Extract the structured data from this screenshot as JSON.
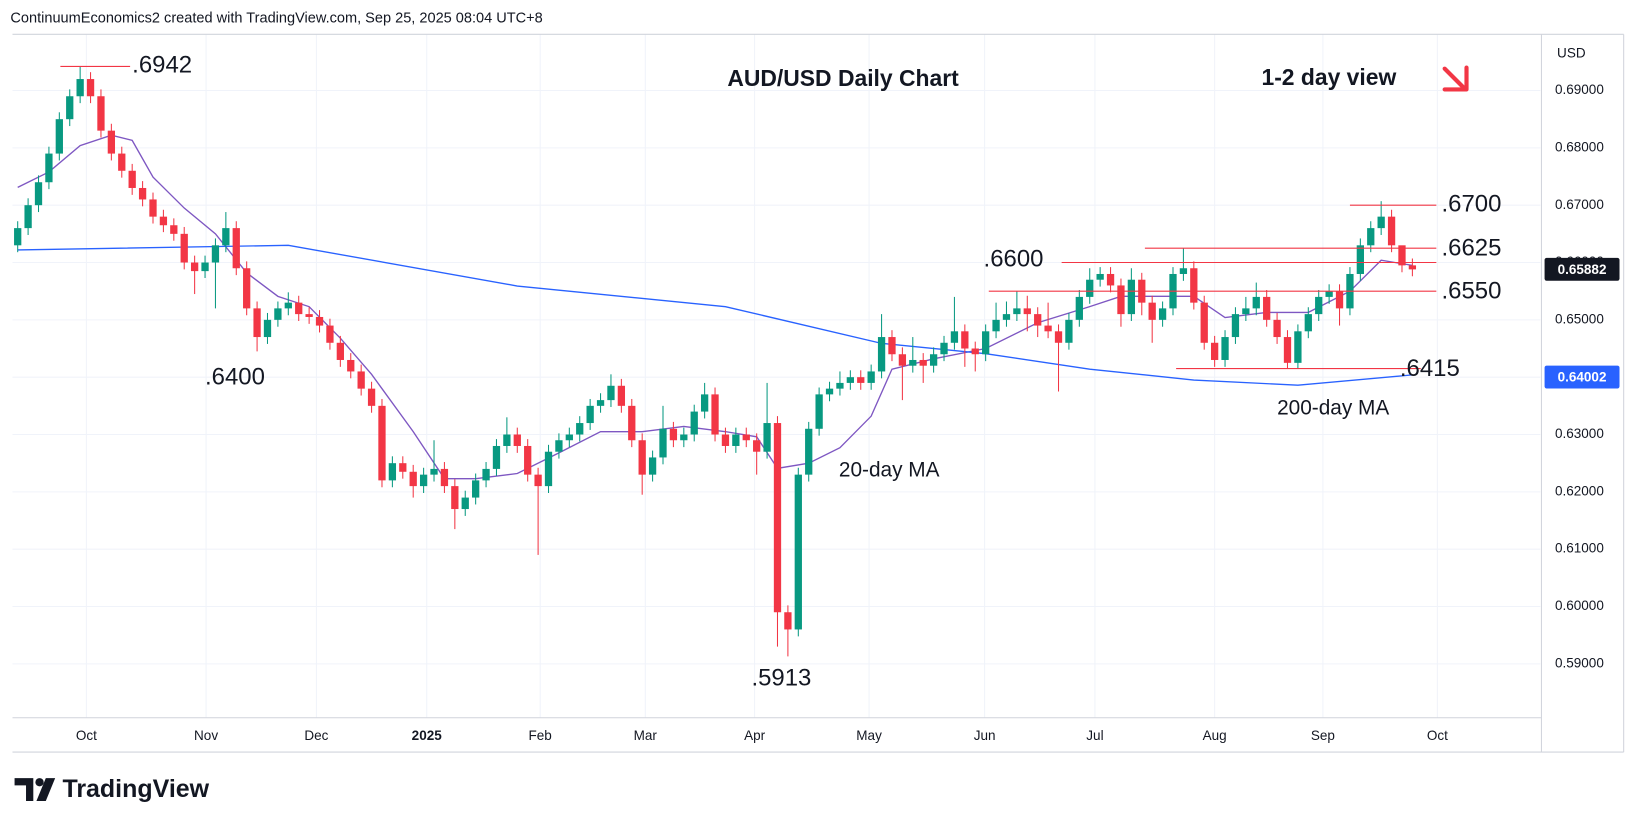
{
  "header": "ContinuumEconomics2 created with TradingView.com, Sep 25, 2025 08:04 UTC+8",
  "footer": {
    "brand": "TradingView"
  },
  "chart_data": {
    "type": "candlestick",
    "title": "AUD/USD Daily Chart",
    "subtitle": "1-2 day view",
    "currency": "USD",
    "up_color": "#089981",
    "down_color": "#f23645",
    "grid": true,
    "xlim": [
      -0.5,
      146.3
    ],
    "xticks": [
      {
        "value": 6.6,
        "label": "Oct"
      },
      {
        "value": 18.1,
        "label": "Nov"
      },
      {
        "value": 28.7,
        "label": "Dec"
      },
      {
        "value": 39.3,
        "label": "2025"
      },
      {
        "value": 50.2,
        "label": "Feb"
      },
      {
        "value": 60.3,
        "label": "Mar"
      },
      {
        "value": 70.8,
        "label": "Apr"
      },
      {
        "value": 81.8,
        "label": "May"
      },
      {
        "value": 92.9,
        "label": "Jun"
      },
      {
        "value": 103.5,
        "label": "Jul"
      },
      {
        "value": 115,
        "label": "Aug"
      },
      {
        "value": 125.4,
        "label": "Sep"
      },
      {
        "value": 136.4,
        "label": "Oct"
      }
    ],
    "ylim": [
      0.5806,
      0.6998
    ],
    "yticks": [
      {
        "value": 0.59,
        "label": "0.59000"
      },
      {
        "value": 0.6,
        "label": "0.60000"
      },
      {
        "value": 0.61,
        "label": "0.61000"
      },
      {
        "value": 0.62,
        "label": "0.62000"
      },
      {
        "value": 0.63,
        "label": "0.63000"
      },
      {
        "value": 0.64,
        "label": "0.64000"
      },
      {
        "value": 0.65,
        "label": "0.65000"
      },
      {
        "value": 0.66,
        "label": "0.66000"
      },
      {
        "value": 0.67,
        "label": "0.67000"
      },
      {
        "value": 0.68,
        "label": "0.68000"
      },
      {
        "value": 0.69,
        "label": "0.69000"
      }
    ],
    "categories": [
      null,
      null,
      null,
      null,
      null,
      null,
      null,
      null,
      null,
      null,
      null,
      null,
      null,
      null,
      null,
      null,
      null,
      null,
      null,
      null,
      null,
      null,
      null,
      null,
      null,
      null,
      null,
      null,
      null,
      null,
      null,
      null,
      null,
      null,
      null,
      null,
      null,
      null,
      null,
      null,
      null,
      null,
      null,
      null,
      null,
      null,
      null,
      null,
      null,
      null,
      null,
      null,
      null,
      null,
      null,
      null,
      null,
      null,
      null,
      null,
      null,
      null,
      null,
      null,
      null,
      null,
      null,
      null,
      null,
      null,
      null,
      null,
      null,
      null,
      null,
      null,
      null,
      null,
      null,
      null,
      null,
      null,
      null,
      null,
      null,
      null,
      null,
      null,
      null,
      null,
      null,
      null,
      null,
      null,
      null,
      null,
      null,
      null,
      null,
      null,
      null,
      null,
      null,
      null,
      null,
      null,
      null,
      null,
      null,
      null,
      null,
      null,
      null,
      null,
      null,
      null,
      null,
      null,
      null,
      null,
      null,
      null,
      null,
      null,
      null,
      null,
      null,
      null,
      null,
      null,
      null,
      null,
      null,
      null,
      null
    ],
    "open": [
      0.663,
      0.666,
      0.67,
      0.674,
      0.679,
      0.685,
      0.689,
      0.692,
      0.689,
      0.683,
      0.679,
      0.676,
      0.673,
      0.671,
      0.668,
      0.6665,
      0.665,
      0.66,
      0.6585,
      0.66,
      0.663,
      0.666,
      0.659,
      0.652,
      0.647,
      0.65,
      0.652,
      0.653,
      0.651,
      0.6505,
      0.649,
      0.646,
      0.643,
      0.641,
      0.638,
      0.635,
      0.622,
      0.625,
      0.6235,
      0.621,
      0.623,
      0.624,
      0.621,
      0.617,
      0.619,
      0.622,
      0.624,
      0.628,
      0.63,
      0.628,
      0.623,
      0.621,
      0.627,
      0.629,
      0.63,
      0.632,
      0.635,
      0.636,
      0.6385,
      0.635,
      0.629,
      0.623,
      0.626,
      0.631,
      0.629,
      0.63,
      0.634,
      0.637,
      0.63,
      0.628,
      0.63,
      0.629,
      0.627,
      0.632,
      0.599,
      0.596,
      0.623,
      0.631,
      0.637,
      0.638,
      0.639,
      0.64,
      0.639,
      0.641,
      0.647,
      0.644,
      0.642,
      0.643,
      0.642,
      0.644,
      0.646,
      0.648,
      0.645,
      0.644,
      0.648,
      0.65,
      0.651,
      0.652,
      0.651,
      0.649,
      0.648,
      0.646,
      0.65,
      0.654,
      0.657,
      0.658,
      0.656,
      0.651,
      0.657,
      0.653,
      0.65,
      0.652,
      0.658,
      0.659,
      0.653,
      0.646,
      0.643,
      0.647,
      0.651,
      0.652,
      0.654,
      0.65,
      0.647,
      0.6425,
      0.648,
      0.651,
      0.654,
      0.655,
      0.652,
      0.658,
      0.663,
      0.666,
      0.668,
      0.663,
      0.6595
    ],
    "high": [
      0.6672,
      0.6712,
      0.6752,
      0.6802,
      0.6862,
      0.6902,
      0.6942,
      0.6932,
      0.6902,
      0.6842,
      0.6802,
      0.6772,
      0.6742,
      0.6722,
      0.6692,
      0.6677,
      0.6662,
      0.6612,
      0.6612,
      0.6642,
      0.6688,
      0.6672,
      0.6602,
      0.6532,
      0.6512,
      0.6532,
      0.6548,
      0.6542,
      0.6522,
      0.6517,
      0.6502,
      0.6472,
      0.6442,
      0.6422,
      0.6392,
      0.6362,
      0.6262,
      0.6262,
      0.6247,
      0.6242,
      0.629,
      0.6252,
      0.6222,
      0.6202,
      0.6232,
      0.6252,
      0.6292,
      0.633,
      0.6312,
      0.6292,
      0.6242,
      0.6282,
      0.6302,
      0.6312,
      0.6332,
      0.6362,
      0.6372,
      0.6405,
      0.6397,
      0.6362,
      0.6302,
      0.6272,
      0.635,
      0.6322,
      0.6312,
      0.6352,
      0.639,
      0.6382,
      0.6312,
      0.6312,
      0.6312,
      0.6302,
      0.639,
      0.6332,
      0.6002,
      0.6242,
      0.6322,
      0.6382,
      0.6392,
      0.641,
      0.6412,
      0.6412,
      0.6422,
      0.651,
      0.6482,
      0.6452,
      0.647,
      0.6442,
      0.6452,
      0.6472,
      0.654,
      0.6492,
      0.6462,
      0.6492,
      0.653,
      0.6532,
      0.655,
      0.6542,
      0.6522,
      0.653,
      0.6492,
      0.6512,
      0.6552,
      0.659,
      0.6592,
      0.6592,
      0.6572,
      0.659,
      0.6582,
      0.6542,
      0.6532,
      0.6592,
      0.6625,
      0.6602,
      0.6542,
      0.6472,
      0.6482,
      0.6522,
      0.654,
      0.6565,
      0.6552,
      0.6512,
      0.6482,
      0.6492,
      0.6522,
      0.6552,
      0.6562,
      0.6562,
      0.6592,
      0.6642,
      0.6672,
      0.6707,
      0.6692,
      0.6625,
      0.6607
    ],
    "low": [
      0.6618,
      0.6648,
      0.6688,
      0.6728,
      0.6778,
      0.6838,
      0.6878,
      0.6878,
      0.6818,
      0.6778,
      0.6748,
      0.6718,
      0.6698,
      0.6668,
      0.6653,
      0.6638,
      0.6588,
      0.6545,
      0.6573,
      0.652,
      0.6618,
      0.6578,
      0.6508,
      0.6445,
      0.6458,
      0.6488,
      0.6508,
      0.6498,
      0.6493,
      0.6478,
      0.6448,
      0.6418,
      0.6398,
      0.6368,
      0.6338,
      0.6208,
      0.6208,
      0.6223,
      0.619,
      0.6198,
      0.6218,
      0.6198,
      0.6135,
      0.6158,
      0.6178,
      0.6208,
      0.6228,
      0.6268,
      0.6268,
      0.6218,
      0.609,
      0.6198,
      0.6258,
      0.6278,
      0.6288,
      0.6308,
      0.6338,
      0.6348,
      0.6338,
      0.6278,
      0.6195,
      0.6218,
      0.6248,
      0.6278,
      0.6278,
      0.6288,
      0.6328,
      0.6288,
      0.6268,
      0.6268,
      0.6278,
      0.623,
      0.6258,
      0.593,
      0.5913,
      0.5948,
      0.6218,
      0.6298,
      0.6358,
      0.6368,
      0.6378,
      0.6378,
      0.6378,
      0.6398,
      0.6428,
      0.636,
      0.6408,
      0.639,
      0.6408,
      0.6428,
      0.6448,
      0.6418,
      0.641,
      0.6428,
      0.6468,
      0.6488,
      0.6498,
      0.648,
      0.647,
      0.6468,
      0.6375,
      0.6448,
      0.6488,
      0.6528,
      0.6558,
      0.6548,
      0.6488,
      0.6498,
      0.6508,
      0.646,
      0.6488,
      0.6508,
      0.6568,
      0.6518,
      0.6448,
      0.6418,
      0.6418,
      0.6458,
      0.6498,
      0.6508,
      0.6488,
      0.6458,
      0.6415,
      0.6415,
      0.6468,
      0.6498,
      0.6528,
      0.649,
      0.6508,
      0.6568,
      0.6618,
      0.6648,
      0.6618,
      0.6583,
      0.6576
    ],
    "close": [
      0.666,
      0.67,
      0.674,
      0.679,
      0.685,
      0.689,
      0.692,
      0.689,
      0.683,
      0.679,
      0.676,
      0.673,
      0.671,
      0.668,
      0.6665,
      0.665,
      0.66,
      0.6585,
      0.66,
      0.663,
      0.666,
      0.659,
      0.652,
      0.647,
      0.65,
      0.652,
      0.653,
      0.651,
      0.6505,
      0.649,
      0.646,
      0.643,
      0.641,
      0.638,
      0.635,
      0.622,
      0.625,
      0.6235,
      0.621,
      0.623,
      0.624,
      0.621,
      0.617,
      0.619,
      0.622,
      0.624,
      0.628,
      0.63,
      0.628,
      0.623,
      0.621,
      0.627,
      0.629,
      0.63,
      0.632,
      0.635,
      0.636,
      0.6385,
      0.635,
      0.629,
      0.623,
      0.626,
      0.631,
      0.629,
      0.63,
      0.634,
      0.637,
      0.63,
      0.628,
      0.63,
      0.629,
      0.627,
      0.632,
      0.599,
      0.596,
      0.623,
      0.631,
      0.637,
      0.638,
      0.639,
      0.64,
      0.639,
      0.641,
      0.647,
      0.644,
      0.642,
      0.643,
      0.642,
      0.644,
      0.646,
      0.648,
      0.645,
      0.644,
      0.648,
      0.65,
      0.651,
      0.652,
      0.651,
      0.649,
      0.648,
      0.646,
      0.65,
      0.654,
      0.657,
      0.658,
      0.656,
      0.651,
      0.657,
      0.653,
      0.65,
      0.652,
      0.658,
      0.659,
      0.653,
      0.646,
      0.643,
      0.647,
      0.651,
      0.652,
      0.654,
      0.65,
      0.647,
      0.6425,
      0.648,
      0.651,
      0.654,
      0.655,
      0.652,
      0.658,
      0.663,
      0.666,
      0.668,
      0.663,
      0.6595,
      0.6588
    ],
    "lines": [
      {
        "name": "20-day MA",
        "color": "#7e57c2",
        "x": [
          0,
          3,
          6,
          9,
          11,
          13,
          16,
          19,
          22,
          25,
          28,
          31,
          34,
          38,
          41,
          44,
          48,
          52,
          56,
          60,
          64,
          68,
          71,
          73,
          76,
          79,
          82,
          84,
          88,
          93,
          98,
          103,
          106,
          110,
          113,
          116,
          120,
          124,
          128,
          131,
          134
        ],
        "values": [
          0.6731,
          0.6758,
          0.6804,
          0.6822,
          0.6813,
          0.6749,
          0.6695,
          0.665,
          0.6582,
          0.6541,
          0.6523,
          0.6468,
          0.6405,
          0.6305,
          0.6223,
          0.6223,
          0.6232,
          0.6268,
          0.6305,
          0.6305,
          0.6314,
          0.6305,
          0.6296,
          0.6241,
          0.625,
          0.6277,
          0.6332,
          0.6414,
          0.6432,
          0.645,
          0.6495,
          0.6523,
          0.6541,
          0.6541,
          0.6541,
          0.6504,
          0.6513,
          0.6513,
          0.655,
          0.6604,
          0.6595
        ]
      },
      {
        "name": "200-day MA",
        "color": "#2962ff",
        "x": [
          0,
          26,
          48,
          68,
          83,
          93,
          103,
          113,
          123,
          134
        ],
        "values": [
          0.6622,
          0.663,
          0.6559,
          0.6523,
          0.6459,
          0.6441,
          0.6414,
          0.6395,
          0.6386,
          0.6404
        ]
      }
    ],
    "levels": [
      {
        "label": ".6942",
        "value": 0.6942,
        "color": "#f23645"
      },
      {
        "label": ".6400",
        "value": 0.64,
        "color": "#f23645"
      },
      {
        "label": ".5913",
        "value": 0.5913,
        "color": "#f23645"
      },
      {
        "label": ".6600",
        "value": 0.66,
        "color": "#f23645"
      },
      {
        "label": ".6625",
        "value": 0.6625,
        "color": "#f23645"
      },
      {
        "label": ".6550",
        "value": 0.655,
        "color": "#f23645"
      },
      {
        "label": ".6415",
        "value": 0.6415,
        "color": "#f23645"
      },
      {
        "label": ".6700",
        "value": 0.67,
        "color": "#f23645"
      }
    ],
    "price_labels": [
      {
        "value": 0.65882,
        "color": "#131722"
      },
      {
        "value": 0.64002,
        "color": "#2962ff"
      }
    ]
  }
}
